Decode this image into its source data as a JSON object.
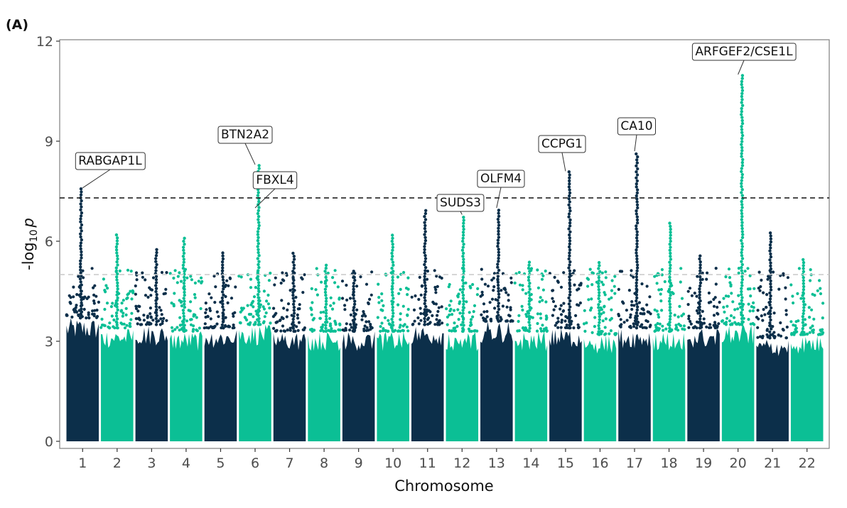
{
  "panel_label": "(A)",
  "colors": {
    "dark": "#0c2f4a",
    "light": "#0bbf95",
    "threshold": "#222222",
    "suggestive": "#c8c8c8"
  },
  "chart_data": {
    "type": "scatter",
    "subtype": "manhattan",
    "title": "",
    "xlabel": "Chromosome",
    "ylabel": "-log10 p",
    "ylabel_display": {
      "prefix": "-log",
      "sub": "10",
      "var": "p"
    },
    "ylim": [
      0,
      12.3
    ],
    "yticks": [
      0,
      3,
      6,
      9,
      12
    ],
    "ytick_labels": [
      "0",
      "3",
      "6",
      "9",
      "12"
    ],
    "grid": false,
    "legend": "none",
    "genome_wide_threshold": 7.3,
    "suggestive_threshold": 5.0,
    "categories": [
      "1",
      "2",
      "3",
      "4",
      "5",
      "6",
      "7",
      "8",
      "9",
      "10",
      "11",
      "12",
      "13",
      "14",
      "15",
      "16",
      "17",
      "18",
      "19",
      "20",
      "21",
      "22"
    ],
    "chromosome_bulk_max": [
      3.7,
      3.4,
      3.5,
      3.3,
      3.4,
      3.5,
      3.3,
      3.3,
      3.3,
      3.3,
      3.5,
      3.3,
      3.6,
      3.3,
      3.4,
      3.2,
      3.4,
      3.3,
      3.4,
      3.5,
      3.1,
      3.2
    ],
    "chromosome_peak_max": [
      7.6,
      6.2,
      5.8,
      6.1,
      5.7,
      8.3,
      5.7,
      5.3,
      5.1,
      6.2,
      7.0,
      6.8,
      7.0,
      5.4,
      8.1,
      5.4,
      8.7,
      6.6,
      5.6,
      11.0,
      6.3,
      5.5
    ],
    "annotations": [
      {
        "gene": "RABGAP1L",
        "chromosome": "1",
        "value": 7.6
      },
      {
        "gene": "BTN2A2",
        "chromosome": "6",
        "value": 8.3
      },
      {
        "gene": "FBXL4",
        "chromosome": "6",
        "value": 7.0
      },
      {
        "gene": "SUDS3",
        "chromosome": "12",
        "value": 6.8
      },
      {
        "gene": "OLFM4",
        "chromosome": "13",
        "value": 7.0
      },
      {
        "gene": "CCPG1",
        "chromosome": "15",
        "value": 8.1
      },
      {
        "gene": "CA10",
        "chromosome": "17",
        "value": 8.7
      },
      {
        "gene": "ARFGEF2/CSE1L",
        "chromosome": "20",
        "value": 11.0
      }
    ]
  }
}
